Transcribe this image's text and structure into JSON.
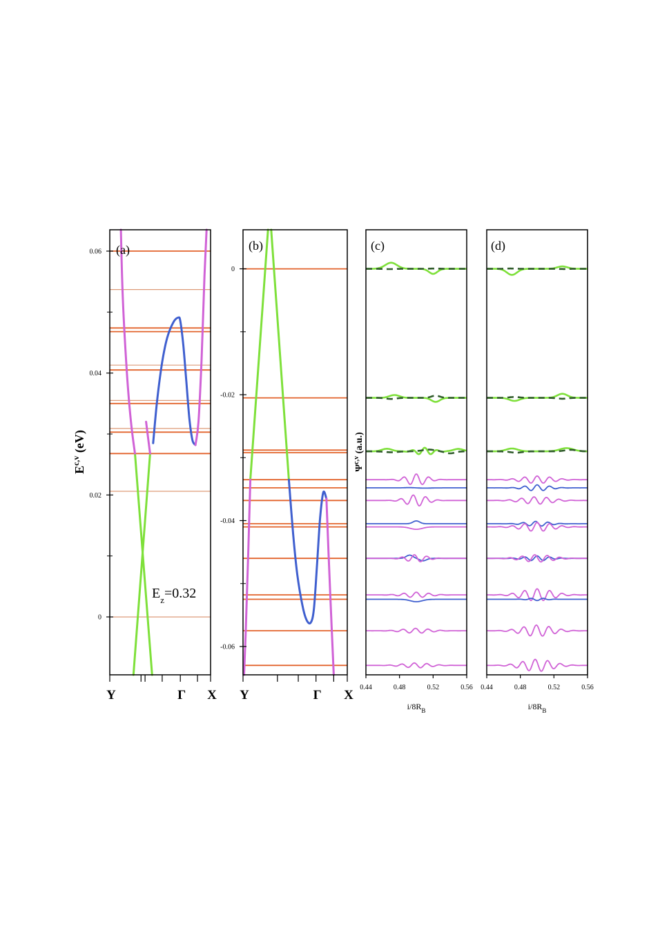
{
  "colors": {
    "green": "#7ee03a",
    "magenta": "#d062d6",
    "blue": "#3f5fcf",
    "orange": "#e2622a",
    "light_orange": "#dd9a78",
    "dark_green": "#2f5a2a"
  },
  "chart_data": [
    {
      "id": "a",
      "type": "line",
      "panel_label": "(a)",
      "ylabel": "E",
      "ylabel_sup": "c,v",
      "ylabel_units": " (eV)",
      "ylim": [
        -0.0095,
        0.0635
      ],
      "yticks": [
        {
          "v": 0,
          "label": "0"
        },
        {
          "v": 0.02,
          "label": "0.02"
        },
        {
          "v": 0.04,
          "label": "0.04"
        },
        {
          "v": 0.06,
          "label": "0.06"
        }
      ],
      "yminor": [
        0.01,
        0.03,
        0.05
      ],
      "xlim": [
        0,
        1
      ],
      "xticks": [
        {
          "v": 0,
          "label": "Y"
        },
        {
          "v": 0.31,
          "label": ""
        },
        {
          "v": 0.35,
          "label": ""
        },
        {
          "v": 0.52,
          "label": ""
        },
        {
          "v": 0.7,
          "label": "Γ"
        },
        {
          "v": 0.87,
          "label": ""
        },
        {
          "v": 1,
          "label": "X"
        }
      ],
      "annotation": {
        "text": "E",
        "sub": "z",
        "after": "=0.32"
      },
      "levels": [
        {
          "e": 0.06,
          "dark": true
        },
        {
          "e": 0.0537,
          "dark": false
        },
        {
          "e": 0.0474,
          "dark": true
        },
        {
          "e": 0.0468,
          "dark": true
        },
        {
          "e": 0.0413,
          "dark": false
        },
        {
          "e": 0.0405,
          "dark": true
        },
        {
          "e": 0.0355,
          "dark": false
        },
        {
          "e": 0.035,
          "dark": true
        },
        {
          "e": 0.0309,
          "dark": false
        },
        {
          "e": 0.0303,
          "dark": true
        },
        {
          "e": 0.0268,
          "dark": true
        },
        {
          "e": 0.0206,
          "dark": false
        },
        {
          "e": 0.0,
          "dark": false
        }
      ],
      "series": [
        {
          "color": "green",
          "points": [
            [
              0.25,
              0.0268
            ],
            [
              0.42,
              -0.0095
            ]
          ]
        },
        {
          "color": "green",
          "points": [
            [
              0.4,
              0.0268
            ],
            [
              0.235,
              -0.0095
            ]
          ]
        },
        {
          "color": "magenta",
          "points": [
            [
              0.11,
              0.0635
            ],
            [
              0.13,
              0.052
            ],
            [
              0.17,
              0.04
            ],
            [
              0.21,
              0.032
            ],
            [
              0.25,
              0.0268
            ]
          ]
        },
        {
          "color": "magenta",
          "points": [
            [
              0.4,
              0.0268
            ],
            [
              0.36,
              0.032
            ]
          ]
        },
        {
          "color": "blue",
          "points": [
            [
              0.43,
              0.0285
            ],
            [
              0.47,
              0.0355
            ],
            [
              0.52,
              0.0418
            ],
            [
              0.57,
              0.0458
            ],
            [
              0.63,
              0.0483
            ],
            [
              0.68,
              0.0491
            ],
            [
              0.7,
              0.0485
            ],
            [
              0.73,
              0.0445
            ],
            [
              0.76,
              0.0385
            ],
            [
              0.79,
              0.0325
            ],
            [
              0.82,
              0.029
            ],
            [
              0.85,
              0.0282
            ]
          ]
        },
        {
          "color": "magenta",
          "points": [
            [
              0.85,
              0.0282
            ],
            [
              0.88,
              0.032
            ],
            [
              0.91,
              0.042
            ],
            [
              0.94,
              0.056
            ],
            [
              0.96,
              0.0635
            ]
          ]
        }
      ]
    },
    {
      "id": "b",
      "type": "line",
      "panel_label": "(b)",
      "ylim": [
        -0.0645,
        0.0062
      ],
      "yticks": [
        {
          "v": 0,
          "label": "0"
        },
        {
          "v": -0.02,
          "label": "-0.02"
        },
        {
          "v": -0.04,
          "label": "-0.04"
        },
        {
          "v": -0.06,
          "label": "-0.06"
        }
      ],
      "yminor": [
        -0.01,
        -0.03,
        -0.05
      ],
      "xlim": [
        0,
        1
      ],
      "xticks": [
        {
          "v": 0,
          "label": "Y"
        },
        {
          "v": 0.33,
          "label": ""
        },
        {
          "v": 0.53,
          "label": ""
        },
        {
          "v": 0.7,
          "label": "Γ"
        },
        {
          "v": 0.87,
          "label": ""
        },
        {
          "v": 1,
          "label": "X"
        }
      ],
      "levels": [
        {
          "e": 0.0,
          "dark": true
        },
        {
          "e": -0.0205,
          "dark": true
        },
        {
          "e": -0.0288,
          "dark": true
        },
        {
          "e": -0.0292,
          "dark": true
        },
        {
          "e": -0.0335,
          "dark": true
        },
        {
          "e": -0.0348,
          "dark": true
        },
        {
          "e": -0.0368,
          "dark": true
        },
        {
          "e": -0.0405,
          "dark": true
        },
        {
          "e": -0.041,
          "dark": true
        },
        {
          "e": -0.046,
          "dark": true
        },
        {
          "e": -0.0518,
          "dark": true
        },
        {
          "e": -0.0525,
          "dark": true
        },
        {
          "e": -0.0575,
          "dark": true
        },
        {
          "e": -0.063,
          "dark": true
        }
      ],
      "series": [
        {
          "color": "green",
          "points": [
            [
              0.24,
              0.0062
            ],
            [
              0.07,
              -0.0335
            ]
          ]
        },
        {
          "color": "green",
          "points": [
            [
              0.27,
              0.0062
            ],
            [
              0.44,
              -0.0335
            ]
          ]
        },
        {
          "color": "magenta",
          "points": [
            [
              0.07,
              -0.0335
            ],
            [
              0.05,
              -0.045
            ],
            [
              0.025,
              -0.058
            ],
            [
              0.01,
              -0.0645
            ]
          ]
        },
        {
          "color": "blue",
          "points": [
            [
              0.44,
              -0.0335
            ],
            [
              0.48,
              -0.042
            ],
            [
              0.52,
              -0.0485
            ],
            [
              0.57,
              -0.0535
            ],
            [
              0.61,
              -0.0558
            ],
            [
              0.65,
              -0.0562
            ],
            [
              0.68,
              -0.054
            ],
            [
              0.71,
              -0.047
            ],
            [
              0.74,
              -0.0395
            ],
            [
              0.77,
              -0.0355
            ],
            [
              0.8,
              -0.0365
            ]
          ]
        },
        {
          "color": "magenta",
          "points": [
            [
              0.8,
              -0.0365
            ],
            [
              0.82,
              -0.045
            ],
            [
              0.85,
              -0.057
            ],
            [
              0.87,
              -0.0645
            ]
          ]
        }
      ]
    },
    {
      "id": "c",
      "type": "line",
      "panel_label": "(c)",
      "ylabel": "Ψ",
      "ylabel_sup": "c,v",
      "ylabel_units": " (a.u.)",
      "xlim": [
        0.44,
        0.56
      ],
      "xticks": [
        {
          "v": 0.44,
          "label": "0.44"
        },
        {
          "v": 0.48,
          "label": "0.48"
        },
        {
          "v": 0.52,
          "label": "0.52"
        },
        {
          "v": 0.56,
          "label": "0.56"
        }
      ],
      "xlabel": "i/8R",
      "xlabel_sub": "B",
      "traces": [
        {
          "color": "green",
          "base": 0.0,
          "amp": 0.7,
          "parts": [
            [
              0.47,
              0.007,
              0.03,
              0.0
            ],
            [
              0.52,
              0.005,
              -0.025,
              0.0
            ]
          ]
        },
        {
          "color": "dark_green",
          "dashed": true,
          "base": 0.0,
          "amp": 0.7,
          "parts": [
            [
              0.468,
              0.007,
              -0.02,
              1.5
            ],
            [
              0.522,
              0.006,
              0.02,
              1.5
            ]
          ]
        },
        {
          "color": "green",
          "base": 0.0205,
          "amp": 0.7,
          "parts": [
            [
              0.474,
              0.006,
              0.014,
              0.0
            ],
            [
              0.523,
              0.005,
              -0.02,
              0.0
            ]
          ]
        },
        {
          "color": "dark_green",
          "dashed": true,
          "base": 0.0205,
          "amp": 0.7,
          "parts": [
            [
              0.47,
              0.006,
              -0.01,
              1.0
            ],
            [
              0.523,
              0.005,
              0.02,
              1.0
            ]
          ]
        },
        {
          "color": "green",
          "base": 0.029,
          "amp": 0.7,
          "parts": [
            [
              0.465,
              0.006,
              0.014,
              0.4
            ],
            [
              0.51,
              0.01,
              0.018,
              0.0
            ],
            [
              0.55,
              0.006,
              0.012,
              0.0
            ]
          ]
        },
        {
          "color": "dark_green",
          "dashed": true,
          "base": 0.029,
          "amp": 0.7,
          "parts": [
            [
              0.47,
              0.008,
              -0.012,
              1.2
            ],
            [
              0.515,
              0.008,
              0.016,
              1.0
            ],
            [
              0.54,
              0.006,
              -0.01,
              0.0
            ]
          ]
        },
        {
          "color": "magenta",
          "base": 0.0335,
          "amp": 0.7,
          "parts": [
            [
              0.5,
              0.012,
              0.028,
              0.0
            ]
          ]
        },
        {
          "color": "blue",
          "base": 0.0348,
          "amp": 0.7,
          "parts": [
            [
              0.492,
              0.006,
              0.018,
              1.5
            ],
            [
              0.51,
              0.007,
              -0.018,
              1.5
            ]
          ]
        },
        {
          "color": "magenta",
          "base": 0.0368,
          "amp": 0.7,
          "parts": [
            [
              0.5,
              0.012,
              0.028,
              1.57
            ]
          ]
        },
        {
          "color": "blue",
          "base": 0.0405,
          "amp": 0.7,
          "parts": [
            [
              0.5,
              0.004,
              0.014,
              0.0
            ]
          ]
        },
        {
          "color": "magenta",
          "base": 0.041,
          "amp": 0.7,
          "parts": [
            [
              0.5,
              0.007,
              -0.012,
              0.0
            ]
          ]
        },
        {
          "color": "blue",
          "base": 0.046,
          "amp": 0.7,
          "parts": [
            [
              0.492,
              0.004,
              0.016,
              0.0
            ],
            [
              0.508,
              0.004,
              -0.012,
              0.0
            ]
          ]
        },
        {
          "color": "magenta",
          "base": 0.046,
          "amp": 0.7,
          "parts": [
            [
              0.5,
              0.012,
              0.018,
              1.0
            ]
          ]
        },
        {
          "color": "magenta",
          "base": 0.0518,
          "amp": 0.7,
          "parts": [
            [
              0.5,
              0.015,
              0.013,
              0.0
            ]
          ]
        },
        {
          "color": "blue",
          "base": 0.0525,
          "amp": 0.7,
          "parts": [
            [
              0.5,
              0.007,
              -0.012,
              0.0
            ]
          ]
        },
        {
          "color": "magenta",
          "base": 0.0575,
          "amp": 0.7,
          "parts": [
            [
              0.5,
              0.016,
              0.012,
              0.4
            ]
          ]
        },
        {
          "color": "magenta",
          "base": 0.063,
          "amp": 0.7,
          "parts": [
            [
              0.5,
              0.016,
              0.012,
              1.0
            ]
          ]
        }
      ]
    },
    {
      "id": "d",
      "type": "line",
      "panel_label": "(d)",
      "xlim": [
        0.44,
        0.56
      ],
      "xticks": [
        {
          "v": 0.44,
          "label": "0.44"
        },
        {
          "v": 0.48,
          "label": "0.48"
        },
        {
          "v": 0.52,
          "label": "0.52"
        },
        {
          "v": 0.56,
          "label": "0.56"
        }
      ],
      "xlabel": "i/8R",
      "xlabel_sub": "B",
      "traces": [
        {
          "color": "green",
          "base": 0.0,
          "amp": 0.7,
          "parts": [
            [
              0.47,
              0.006,
              -0.03,
              0.0
            ],
            [
              0.53,
              0.006,
              0.012,
              0.0
            ]
          ]
        },
        {
          "color": "dark_green",
          "dashed": true,
          "base": 0.0,
          "amp": 0.7,
          "parts": [
            [
              0.468,
              0.006,
              0.02,
              1.5
            ],
            [
              0.532,
              0.006,
              -0.014,
              1.5
            ]
          ]
        },
        {
          "color": "green",
          "base": 0.0205,
          "amp": 0.7,
          "parts": [
            [
              0.473,
              0.006,
              -0.015,
              0.0
            ],
            [
              0.53,
              0.006,
              0.02,
              0.0
            ]
          ]
        },
        {
          "color": "dark_green",
          "dashed": true,
          "base": 0.0205,
          "amp": 0.7,
          "parts": [
            [
              0.473,
              0.006,
              0.012,
              1.2
            ],
            [
              0.53,
              0.006,
              -0.012,
              1.2
            ]
          ]
        },
        {
          "color": "green",
          "base": 0.029,
          "amp": 0.7,
          "parts": [
            [
              0.47,
              0.007,
              0.014,
              0.0
            ],
            [
              0.535,
              0.008,
              0.016,
              0.0
            ]
          ]
        },
        {
          "color": "dark_green",
          "dashed": true,
          "base": 0.029,
          "amp": 0.7,
          "parts": [
            [
              0.475,
              0.007,
              -0.012,
              1.0
            ],
            [
              0.54,
              0.007,
              0.014,
              1.0
            ]
          ]
        },
        {
          "color": "magenta",
          "base": 0.0335,
          "amp": 0.7,
          "parts": [
            [
              0.5,
              0.018,
              0.018,
              0.0
            ]
          ]
        },
        {
          "color": "blue",
          "base": 0.0348,
          "amp": 0.7,
          "parts": [
            [
              0.5,
              0.014,
              0.015,
              0.0
            ]
          ]
        },
        {
          "color": "magenta",
          "base": 0.0368,
          "amp": 0.7,
          "parts": [
            [
              0.5,
              0.018,
              0.018,
              1.57
            ]
          ]
        },
        {
          "color": "blue",
          "base": 0.0405,
          "amp": 0.7,
          "parts": [
            [
              0.5,
              0.014,
              0.012,
              0.8
            ]
          ]
        },
        {
          "color": "magenta",
          "base": 0.041,
          "amp": 0.7,
          "parts": [
            [
              0.5,
              0.018,
              0.022,
              0.0
            ]
          ]
        },
        {
          "color": "blue",
          "base": 0.046,
          "amp": 0.7,
          "parts": [
            [
              0.5,
              0.014,
              0.012,
              0.0
            ]
          ]
        },
        {
          "color": "magenta",
          "base": 0.046,
          "amp": 0.7,
          "parts": [
            [
              0.5,
              0.018,
              0.018,
              1.2
            ]
          ]
        },
        {
          "color": "magenta",
          "base": 0.0518,
          "amp": 0.7,
          "parts": [
            [
              0.5,
              0.018,
              0.03,
              0.0
            ]
          ]
        },
        {
          "color": "blue",
          "base": 0.0525,
          "amp": 0.7,
          "parts": [
            [
              0.5,
              0.01,
              -0.006,
              0.0
            ]
          ]
        },
        {
          "color": "magenta",
          "base": 0.0575,
          "amp": 0.7,
          "parts": [
            [
              0.5,
              0.018,
              0.028,
              0.4
            ]
          ]
        },
        {
          "color": "magenta",
          "base": 0.063,
          "amp": 0.7,
          "parts": [
            [
              0.5,
              0.018,
              0.03,
              1.0
            ]
          ]
        }
      ]
    }
  ]
}
